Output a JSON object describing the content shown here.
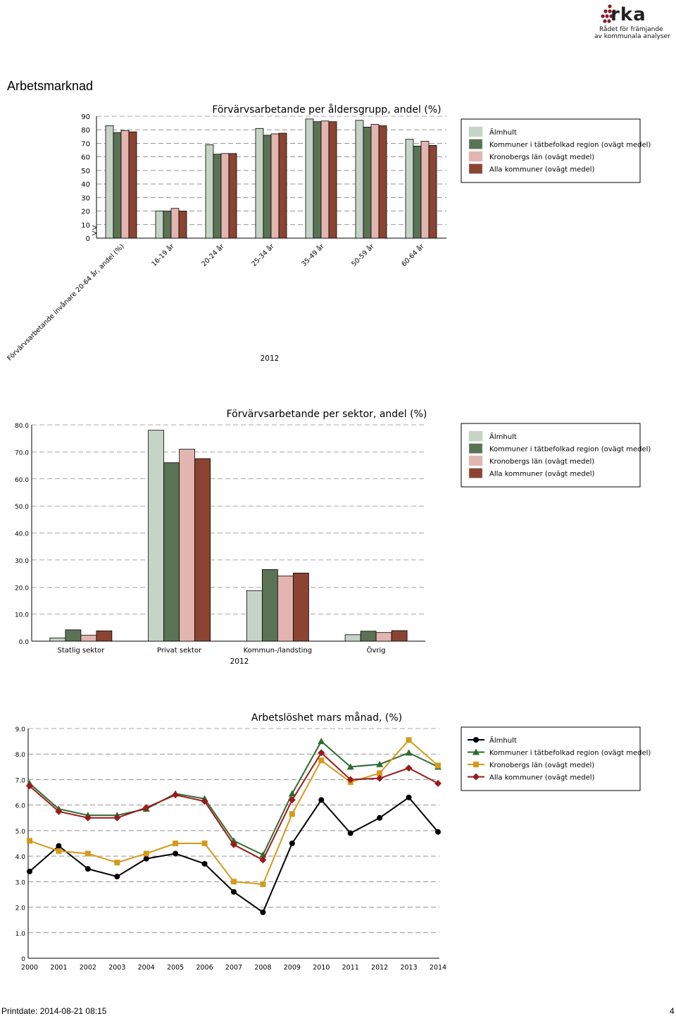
{
  "logo": {
    "brand": "rka",
    "line1": "Rådet för främjande",
    "line2": "av kommunala analyser"
  },
  "page_title": "Arbetsmarknad",
  "footer": {
    "printdate": "Printdate: 2014-08-21 08:15",
    "page_number": "4"
  },
  "colors": {
    "Älmhult": "#c5d4c7",
    "Kommuner i tätbefolkad region (ovägt medel)": "#5b7355",
    "Kronobergs län (ovägt medel)": "#e3b5b0",
    "Alla kommuner (ovägt medel)": "#8b4432",
    "line_Älmhult": "#000000",
    "line_Kommuner": "#2e6b2e",
    "line_Kronobergs": "#d49a1a",
    "line_Alla": "#9b1a1a"
  },
  "chart_data": [
    {
      "type": "bar",
      "title": "Förvärvsarbetande per åldersgrupp, andel (%)",
      "xlabel": "2012",
      "ylim": [
        0,
        90
      ],
      "yticks": [
        "0",
        "10",
        "20",
        "30",
        "40",
        "50",
        "60",
        "70",
        "80",
        "90"
      ],
      "axis_break": true,
      "categories": [
        "Förvärvsarbetande invånare 20-64 år, andel (%)",
        "16-19 år",
        "20-24 år",
        "25-34 år",
        "35-49 år",
        "50-59 år",
        "60-64 år"
      ],
      "legend_position": "right",
      "series": [
        {
          "name": "Älmhult",
          "values": [
            83,
            20,
            69,
            81,
            88,
            87,
            73
          ]
        },
        {
          "name": "Kommuner i tätbefolkad region (ovägt medel)",
          "values": [
            78,
            20,
            62,
            76,
            86,
            82,
            68
          ]
        },
        {
          "name": "Kronobergs län (ovägt medel)",
          "values": [
            79.5,
            22,
            62.5,
            77,
            86.5,
            84,
            71.5
          ]
        },
        {
          "name": "Alla kommuner (ovägt medel)",
          "values": [
            78.5,
            20,
            62.5,
            77.5,
            86,
            83,
            68.5
          ]
        }
      ]
    },
    {
      "type": "bar",
      "title": "Förvärvsarbetande per sektor, andel (%)",
      "xlabel": "2012",
      "ylim": [
        0,
        80
      ],
      "yticks": [
        "0.0",
        "10.0",
        "20.0",
        "30.0",
        "40.0",
        "50.0",
        "60.0",
        "70.0",
        "80.0"
      ],
      "categories": [
        "Statlig sektor",
        "Privat sektor",
        "Kommun-/landsting",
        "Övrig"
      ],
      "legend_position": "right",
      "series": [
        {
          "name": "Älmhult",
          "values": [
            1.2,
            78,
            18.7,
            2.4
          ]
        },
        {
          "name": "Kommuner i tätbefolkad region (ovägt medel)",
          "values": [
            4.2,
            66,
            26.5,
            3.7
          ]
        },
        {
          "name": "Kronobergs län (ovägt medel)",
          "values": [
            2.2,
            71,
            24.1,
            3.2
          ]
        },
        {
          "name": "Alla kommuner (ovägt medel)",
          "values": [
            3.8,
            67.5,
            25.2,
            3.9
          ]
        }
      ]
    },
    {
      "type": "line",
      "title": "Arbetslöshet mars månad, (%)",
      "ylim": [
        0,
        9
      ],
      "yticks": [
        "0",
        "1.0",
        "2.0",
        "3.0",
        "4.0",
        "5.0",
        "6.0",
        "7.0",
        "8.0",
        "9.0"
      ],
      "axis_break": true,
      "x": [
        "2000",
        "2001",
        "2002",
        "2003",
        "2004",
        "2005",
        "2006",
        "2007",
        "2008",
        "2009",
        "2010",
        "2011",
        "2012",
        "2013",
        "2014"
      ],
      "legend_position": "right",
      "series": [
        {
          "name": "Älmhult",
          "marker": "circle",
          "values": [
            3.4,
            4.4,
            3.5,
            3.2,
            3.9,
            4.1,
            3.7,
            2.6,
            1.8,
            4.5,
            6.2,
            4.9,
            5.5,
            6.3,
            4.95
          ]
        },
        {
          "name": "Kommuner i tätbefolkad region (ovägt medel)",
          "marker": "triangle",
          "values": [
            6.85,
            5.85,
            5.6,
            5.6,
            5.85,
            6.45,
            6.25,
            4.6,
            4.05,
            6.45,
            8.5,
            7.5,
            7.6,
            8.05,
            7.5
          ]
        },
        {
          "name": "Kronobergs län (ovägt medel)",
          "marker": "square",
          "values": [
            4.6,
            4.2,
            4.1,
            3.75,
            4.1,
            4.5,
            4.5,
            3.0,
            2.9,
            5.65,
            7.75,
            6.9,
            7.25,
            8.55,
            7.55
          ]
        },
        {
          "name": "Alla kommuner (ovägt medel)",
          "marker": "diamond",
          "values": [
            6.75,
            5.75,
            5.5,
            5.5,
            5.9,
            6.4,
            6.15,
            4.45,
            3.85,
            6.2,
            8.05,
            7.0,
            7.05,
            7.45,
            6.85
          ]
        }
      ]
    }
  ]
}
